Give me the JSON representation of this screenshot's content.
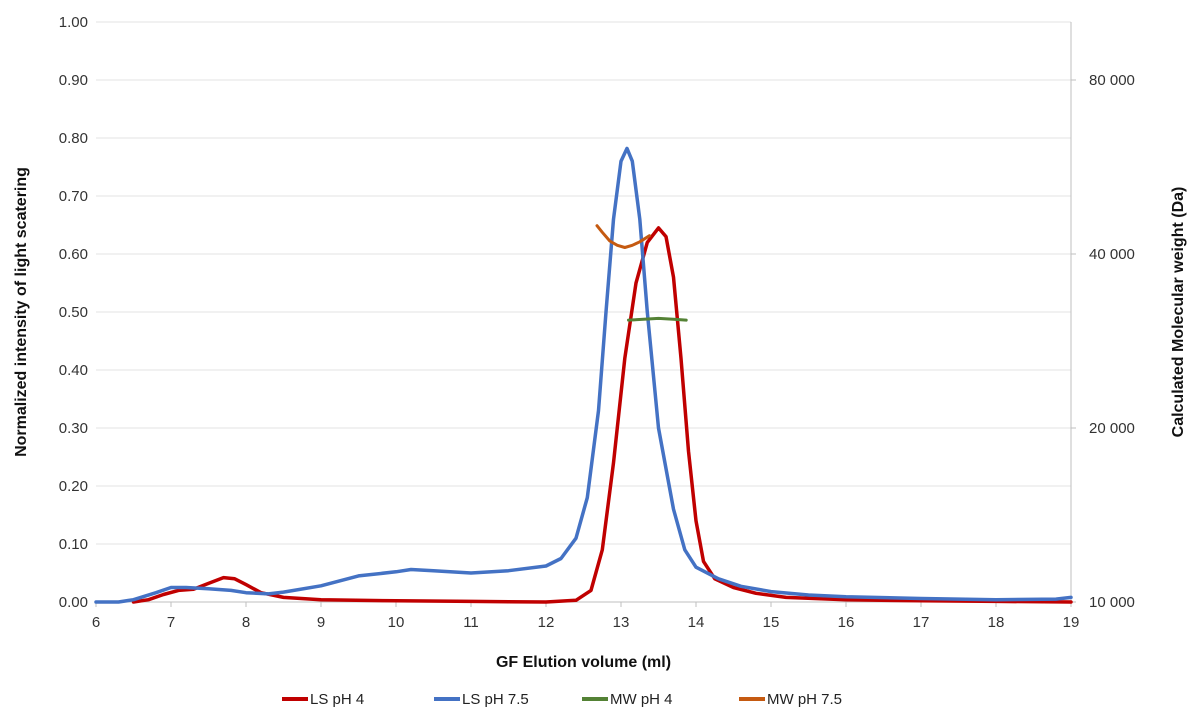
{
  "chart_data": {
    "type": "line",
    "title": "",
    "xlabel": "GF Elution volume (ml)",
    "ylabel": "Normalized intensity of light scatering",
    "y2label": "Calculated Molecular weight (Da)",
    "xlim": [
      6,
      19
    ],
    "ylim": [
      0,
      1
    ],
    "y2lim": [
      10000,
      90000
    ],
    "grid": true,
    "legend_position": "bottom",
    "x_ticks": [
      "6",
      "7",
      "8",
      "9",
      "10",
      "11",
      "12",
      "13",
      "14",
      "15",
      "16",
      "17",
      "18",
      "19"
    ],
    "y_ticks": [
      "0.00",
      "0.10",
      "0.20",
      "0.30",
      "0.40",
      "0.50",
      "0.60",
      "0.70",
      "0.80",
      "0.90",
      "1.00"
    ],
    "y2_ticks": [
      "10 000",
      "20 000",
      "40 000",
      "80 000"
    ],
    "y2_tick_values": [
      10000,
      20000,
      40000,
      80000
    ],
    "series": [
      {
        "name": "LS pH 4",
        "axis": "left",
        "color": "#C00000",
        "points": [
          [
            6.5,
            0.0
          ],
          [
            6.7,
            0.004
          ],
          [
            6.9,
            0.013
          ],
          [
            7.1,
            0.02
          ],
          [
            7.3,
            0.022
          ],
          [
            7.5,
            0.032
          ],
          [
            7.7,
            0.042
          ],
          [
            7.85,
            0.04
          ],
          [
            8.0,
            0.03
          ],
          [
            8.2,
            0.016
          ],
          [
            8.5,
            0.008
          ],
          [
            9.0,
            0.004
          ],
          [
            10.0,
            0.002
          ],
          [
            11.0,
            0.001
          ],
          [
            12.0,
            0.0
          ],
          [
            12.4,
            0.003
          ],
          [
            12.6,
            0.02
          ],
          [
            12.75,
            0.09
          ],
          [
            12.9,
            0.24
          ],
          [
            13.05,
            0.42
          ],
          [
            13.2,
            0.55
          ],
          [
            13.35,
            0.62
          ],
          [
            13.5,
            0.645
          ],
          [
            13.6,
            0.63
          ],
          [
            13.7,
            0.56
          ],
          [
            13.8,
            0.42
          ],
          [
            13.9,
            0.26
          ],
          [
            14.0,
            0.14
          ],
          [
            14.1,
            0.07
          ],
          [
            14.25,
            0.04
          ],
          [
            14.5,
            0.025
          ],
          [
            14.8,
            0.015
          ],
          [
            15.2,
            0.008
          ],
          [
            16.0,
            0.004
          ],
          [
            17.0,
            0.002
          ],
          [
            18.0,
            0.001
          ],
          [
            19.0,
            0.0
          ]
        ]
      },
      {
        "name": "LS pH 7.5",
        "axis": "left",
        "color": "#4472C4",
        "points": [
          [
            6.0,
            0.0
          ],
          [
            6.3,
            0.0
          ],
          [
            6.5,
            0.004
          ],
          [
            6.8,
            0.016
          ],
          [
            7.0,
            0.025
          ],
          [
            7.2,
            0.025
          ],
          [
            7.5,
            0.023
          ],
          [
            7.8,
            0.02
          ],
          [
            8.0,
            0.016
          ],
          [
            8.3,
            0.014
          ],
          [
            8.5,
            0.017
          ],
          [
            9.0,
            0.028
          ],
          [
            9.5,
            0.045
          ],
          [
            10.0,
            0.052
          ],
          [
            10.2,
            0.056
          ],
          [
            10.5,
            0.054
          ],
          [
            11.0,
            0.05
          ],
          [
            11.5,
            0.054
          ],
          [
            12.0,
            0.062
          ],
          [
            12.2,
            0.075
          ],
          [
            12.4,
            0.11
          ],
          [
            12.55,
            0.18
          ],
          [
            12.7,
            0.33
          ],
          [
            12.8,
            0.5
          ],
          [
            12.9,
            0.66
          ],
          [
            13.0,
            0.76
          ],
          [
            13.08,
            0.782
          ],
          [
            13.15,
            0.76
          ],
          [
            13.25,
            0.66
          ],
          [
            13.35,
            0.5
          ],
          [
            13.5,
            0.3
          ],
          [
            13.7,
            0.16
          ],
          [
            13.85,
            0.09
          ],
          [
            14.0,
            0.06
          ],
          [
            14.3,
            0.04
          ],
          [
            14.6,
            0.027
          ],
          [
            15.0,
            0.018
          ],
          [
            15.5,
            0.012
          ],
          [
            16.0,
            0.009
          ],
          [
            17.0,
            0.006
          ],
          [
            18.0,
            0.004
          ],
          [
            18.8,
            0.005
          ],
          [
            19.0,
            0.008
          ]
        ]
      },
      {
        "name": "MW pH 4",
        "axis": "right",
        "color": "#548235",
        "points": [
          [
            13.1,
            32400
          ],
          [
            13.3,
            32500
          ],
          [
            13.5,
            32600
          ],
          [
            13.7,
            32500
          ],
          [
            13.87,
            32400
          ]
        ]
      },
      {
        "name": "MW pH 7.5",
        "axis": "right",
        "color": "#C55A11",
        "points": [
          [
            12.68,
            46500
          ],
          [
            12.75,
            45000
          ],
          [
            12.85,
            43000
          ],
          [
            12.95,
            42000
          ],
          [
            13.05,
            41500
          ],
          [
            13.15,
            42000
          ],
          [
            13.25,
            42800
          ],
          [
            13.38,
            44200
          ]
        ]
      }
    ]
  }
}
